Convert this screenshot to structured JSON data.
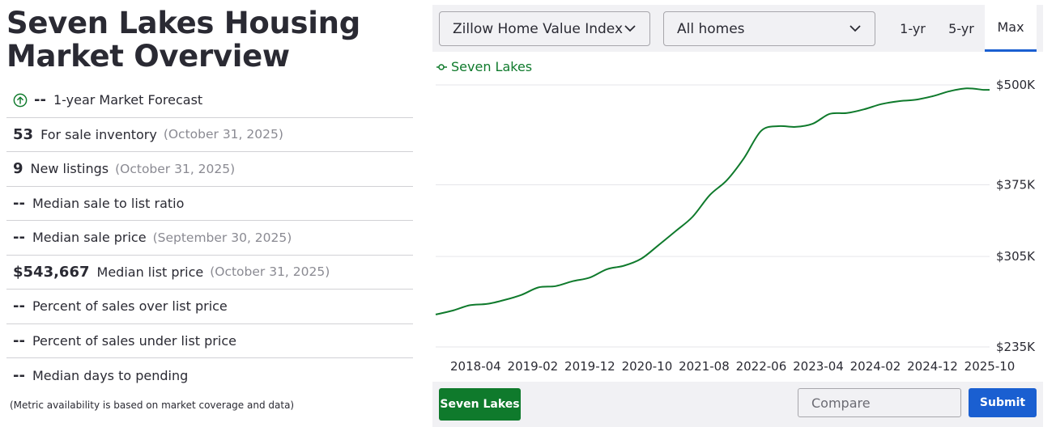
{
  "page": {
    "title": "Seven Lakes Housing Market Overview",
    "footnote": "(Metric availability is based on market coverage and data)"
  },
  "metrics": [
    {
      "value": "--",
      "label": "1-year Market Forecast",
      "date": "",
      "icon": "arrow-up-circle-icon"
    },
    {
      "value": "53",
      "label": "For sale inventory",
      "date": "(October 31, 2025)"
    },
    {
      "value": "9",
      "label": "New listings",
      "date": "(October 31, 2025)"
    },
    {
      "value": "--",
      "label": "Median sale to list ratio",
      "date": ""
    },
    {
      "value": "--",
      "label": "Median sale price",
      "date": "(September 30, 2025)"
    },
    {
      "value": "$543,667",
      "label": "Median list price",
      "date": "(October 31, 2025)"
    },
    {
      "value": "--",
      "label": "Percent of sales over list price",
      "date": ""
    },
    {
      "value": "--",
      "label": "Percent of sales under list price",
      "date": ""
    },
    {
      "value": "--",
      "label": "Median days to pending",
      "date": ""
    }
  ],
  "controls": {
    "index_select": "Zillow Home Value Index",
    "home_type_select": "All homes",
    "ranges": [
      "1-yr",
      "5-yr",
      "Max"
    ],
    "active_range": "Max"
  },
  "bottom": {
    "location_button": "Seven Lakes",
    "compare_placeholder": "Compare",
    "submit_label": "Submit"
  },
  "colors": {
    "series": "#0f7a2c",
    "accent": "#1a5fd1",
    "panel_bg": "#f1f1f4"
  },
  "chart_data": {
    "type": "line",
    "title": "",
    "xlabel": "",
    "ylabel": "",
    "y_scale": "log",
    "yticks": [
      235000,
      305000,
      375000,
      500000
    ],
    "ytick_labels": [
      "$235K",
      "$305K",
      "$375K",
      "$500K"
    ],
    "xtick_labels": [
      "2018-04",
      "2019-02",
      "2019-12",
      "2020-10",
      "2021-08",
      "2022-06",
      "2023-04",
      "2024-02",
      "2024-12",
      "2025-10"
    ],
    "xlim": [
      "2017-09",
      "2025-10"
    ],
    "ylim": [
      235000,
      500000
    ],
    "grid": true,
    "legend": "top-left",
    "series": [
      {
        "name": "Seven Lakes",
        "x": [
          "2017-09",
          "2017-12",
          "2018-03",
          "2018-06",
          "2018-09",
          "2018-12",
          "2019-03",
          "2019-06",
          "2019-09",
          "2019-12",
          "2020-03",
          "2020-06",
          "2020-09",
          "2020-12",
          "2021-03",
          "2021-06",
          "2021-09",
          "2021-12",
          "2022-03",
          "2022-06",
          "2022-09",
          "2022-12",
          "2023-03",
          "2023-06",
          "2023-09",
          "2023-12",
          "2024-03",
          "2024-06",
          "2024-09",
          "2024-12",
          "2025-03",
          "2025-06",
          "2025-09",
          "2025-10"
        ],
        "values": [
          258000,
          261000,
          265000,
          266000,
          269000,
          273000,
          279000,
          280000,
          284000,
          287000,
          294000,
          297000,
          303000,
          315000,
          328000,
          342000,
          364000,
          380000,
          405000,
          438000,
          444000,
          443000,
          447000,
          460000,
          461000,
          466000,
          473000,
          477000,
          479000,
          484000,
          491000,
          495000,
          493000,
          493000
        ]
      }
    ]
  }
}
